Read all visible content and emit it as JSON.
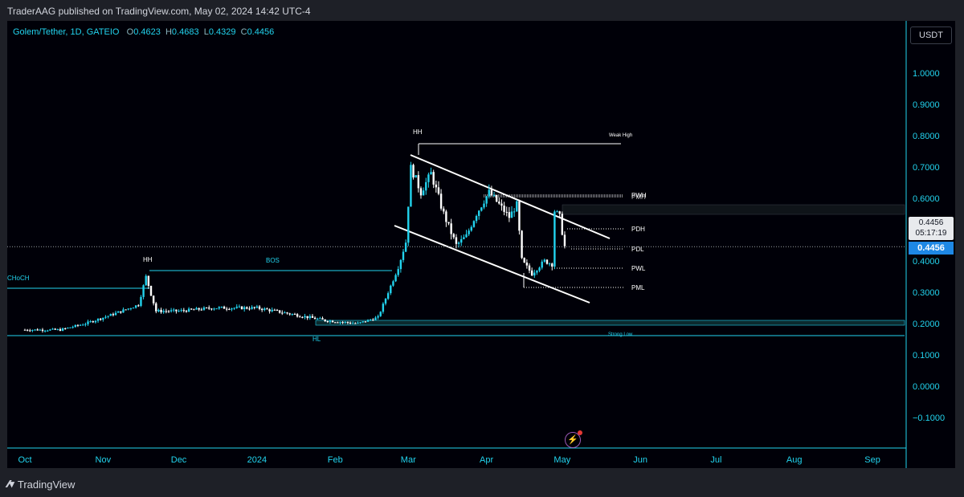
{
  "header": {
    "published": "TraderAAG published on TradingView.com, May 02, 2024 14:42 UTC-4"
  },
  "footer": {
    "brand": "TradingView"
  },
  "legend": {
    "symbol": "Golem/Tether, 1D, GATEIO",
    "o_label": "O",
    "o_value": "0.4623",
    "h_label": "H",
    "h_value": "0.4683",
    "l_label": "L",
    "l_value": "0.4329",
    "c_label": "C",
    "c_value": "0.4456"
  },
  "currency_button": "USDT",
  "price_label": {
    "price": "0.4456",
    "countdown": "05:17:19",
    "tag": "0.4456"
  },
  "colors": {
    "up": "#22d3ee",
    "down": "#ffffff",
    "channel": "#ffffff",
    "structure": "#22d3ee",
    "accent": "#1e88e5"
  },
  "icons": {
    "lightning": "lightning-icon"
  },
  "chart_data": {
    "type": "candlestick",
    "symbol": "Golem/Tether",
    "timeframe": "1D",
    "exchange": "GATEIO",
    "ylim": [
      -0.15,
      1.15
    ],
    "y_ticks": [
      "1.0000",
      "0.9000",
      "0.8000",
      "0.7000",
      "0.6000",
      "0.5000",
      "0.4000",
      "0.3000",
      "0.2000",
      "0.1000",
      "0.0000",
      "−0.1000"
    ],
    "x_ticks": [
      "Oct",
      "Nov",
      "Dec",
      "2024",
      "Feb",
      "Mar",
      "Apr",
      "May",
      "Jun",
      "Jul",
      "Aug",
      "Sep"
    ],
    "last_price": 0.4456,
    "close_path": [
      [
        "2023-10-01",
        0.18
      ],
      [
        "2023-10-15",
        0.18
      ],
      [
        "2023-10-25",
        0.2
      ],
      [
        "2023-11-05",
        0.23
      ],
      [
        "2023-11-15",
        0.26
      ],
      [
        "2023-11-18",
        0.35
      ],
      [
        "2023-11-22",
        0.24
      ],
      [
        "2023-12-01",
        0.24
      ],
      [
        "2023-12-15",
        0.25
      ],
      [
        "2024-01-01",
        0.25
      ],
      [
        "2024-01-15",
        0.23
      ],
      [
        "2024-01-28",
        0.21
      ],
      [
        "2024-02-10",
        0.2
      ],
      [
        "2024-02-18",
        0.22
      ],
      [
        "2024-02-22",
        0.3
      ],
      [
        "2024-02-26",
        0.38
      ],
      [
        "2024-02-29",
        0.46
      ],
      [
        "2024-03-02",
        0.7
      ],
      [
        "2024-03-06",
        0.62
      ],
      [
        "2024-03-10",
        0.68
      ],
      [
        "2024-03-15",
        0.55
      ],
      [
        "2024-03-20",
        0.45
      ],
      [
        "2024-03-24",
        0.48
      ],
      [
        "2024-03-28",
        0.55
      ],
      [
        "2024-04-02",
        0.62
      ],
      [
        "2024-04-06",
        0.58
      ],
      [
        "2024-04-10",
        0.54
      ],
      [
        "2024-04-13",
        0.58
      ],
      [
        "2024-04-15",
        0.4
      ],
      [
        "2024-04-19",
        0.36
      ],
      [
        "2024-04-24",
        0.4
      ],
      [
        "2024-04-27",
        0.39
      ],
      [
        "2024-04-28",
        0.56
      ],
      [
        "2024-04-30",
        0.54
      ],
      [
        "2024-05-02",
        0.4456
      ]
    ],
    "labels": {
      "hh_1": "HH",
      "bos": "BOS",
      "choch": "CHoCH",
      "hl": "HL",
      "hh_2": "HH",
      "weak_high": "Weak High",
      "strong_low": "Strong Low",
      "pwh": "PWH",
      "pmh": "PMH",
      "pdh": "PDH",
      "pdl": "PDL",
      "pwl": "PWL",
      "pml": "PML"
    },
    "levels": {
      "weak_high": 0.774,
      "hh_1": 0.372,
      "choch": 0.31,
      "strong_low": 0.163,
      "hl_zone": [
        0.196,
        0.209
      ],
      "pwh": 0.611,
      "pmh": 0.609,
      "pdh": 0.504,
      "pdl": 0.442,
      "pwl": 0.379,
      "pml": 0.317
    },
    "channel": {
      "upper": [
        [
          "2024-02-29",
          0.745
        ],
        [
          "2024-05-20",
          0.475
        ]
      ],
      "lower": [
        [
          "2024-02-18",
          0.517
        ],
        [
          "2024-05-09",
          0.265
        ]
      ]
    }
  }
}
